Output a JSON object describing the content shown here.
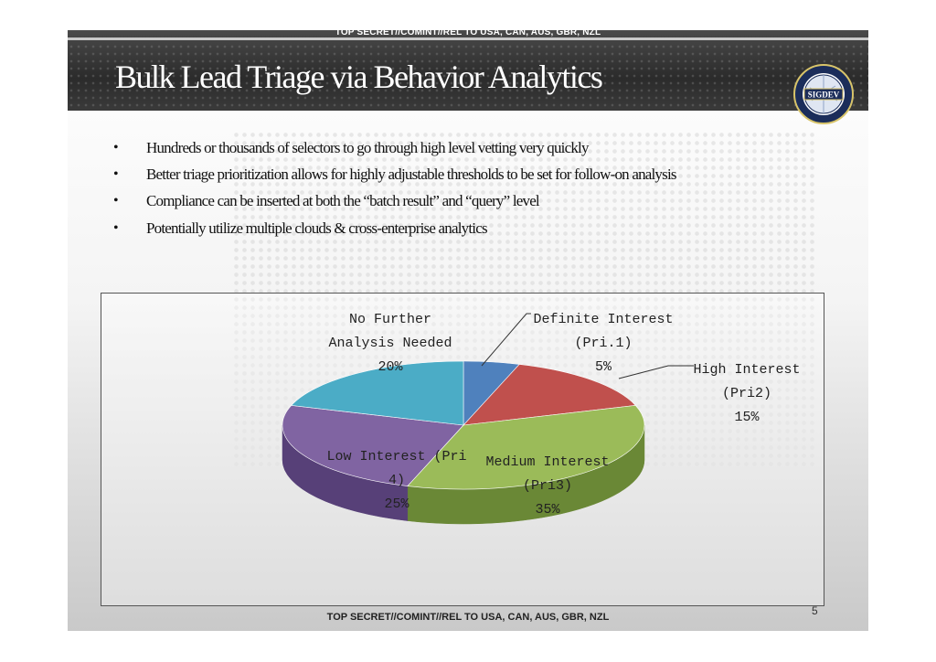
{
  "header": {
    "classification": "TOP SECRET//COMINT//REL TO USA, CAN, AUS, GBR, NZL",
    "title": "Bulk Lead Triage via Behavior Analytics",
    "seal_text": "SIGDEV"
  },
  "bullets": [
    "Hundreds or thousands of selectors to go through high level vetting very quickly",
    "Better triage prioritization allows for highly adjustable thresholds to be set for follow-on analysis",
    "Compliance can be inserted at both the “batch result” and “query” level",
    "Potentially utilize multiple clouds & cross-enterprise analytics"
  ],
  "chart_data": {
    "type": "pie",
    "title": "",
    "slices": [
      {
        "label_lines": [
          "Definite Interest",
          "(Pri.1)",
          "5%"
        ],
        "value": 5,
        "color": "#4f81bd",
        "side": "#36598a"
      },
      {
        "label_lines": [
          "High Interest",
          "(Pri2)",
          "15%"
        ],
        "value": 15,
        "color": "#c0504d",
        "side": "#8a3432"
      },
      {
        "label_lines": [
          "Medium Interest",
          "(Pri3)",
          "35%"
        ],
        "value": 35,
        "color": "#9bbb59",
        "side": "#6a8836"
      },
      {
        "label_lines": [
          "Low Interest (Pri",
          "4)",
          "25%"
        ],
        "value": 25,
        "color": "#8064a2",
        "side": "#574078"
      },
      {
        "label_lines": [
          "No Further",
          "Analysis Needed",
          "20%"
        ],
        "value": 20,
        "color": "#4bacc6",
        "side": "#2f7a8f"
      }
    ],
    "legend": "none",
    "style": "3d"
  },
  "footer": {
    "page_number": "5",
    "classification": "TOP SECRET//COMINT//REL TO USA, CAN, AUS, GBR, NZL"
  }
}
